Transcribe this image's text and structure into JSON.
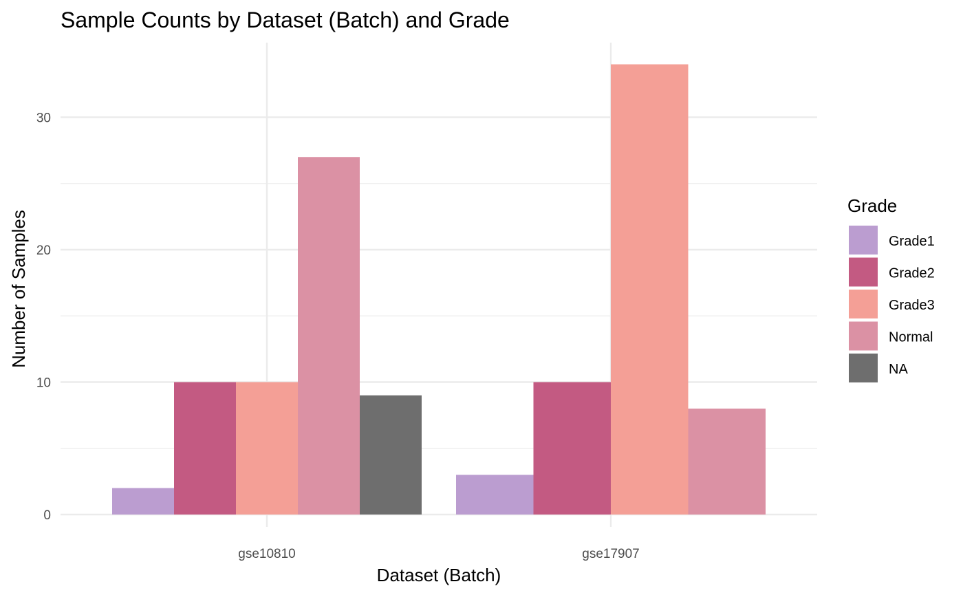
{
  "chart_data": {
    "type": "bar",
    "title": "Sample Counts by Dataset (Batch) and Grade",
    "xlabel": "Dataset (Batch)",
    "ylabel": "Number of Samples",
    "categories": [
      "gse10810",
      "gse17907"
    ],
    "ylim": [
      0,
      35
    ],
    "yticks": [
      0,
      10,
      20,
      30
    ],
    "grid": true,
    "legend": {
      "title": "Grade",
      "position": "right"
    },
    "series": [
      {
        "name": "Grade1",
        "color": "#bb9dd0",
        "values": [
          2,
          3
        ]
      },
      {
        "name": "Grade2",
        "color": "#c35a82",
        "values": [
          10,
          10
        ]
      },
      {
        "name": "Grade3",
        "color": "#f49f96",
        "values": [
          10,
          34
        ]
      },
      {
        "name": "Normal",
        "color": "#db91a4",
        "values": [
          27,
          8
        ]
      },
      {
        "name": "NA",
        "color": "#6e6e6e",
        "values": [
          9,
          null
        ]
      }
    ]
  }
}
